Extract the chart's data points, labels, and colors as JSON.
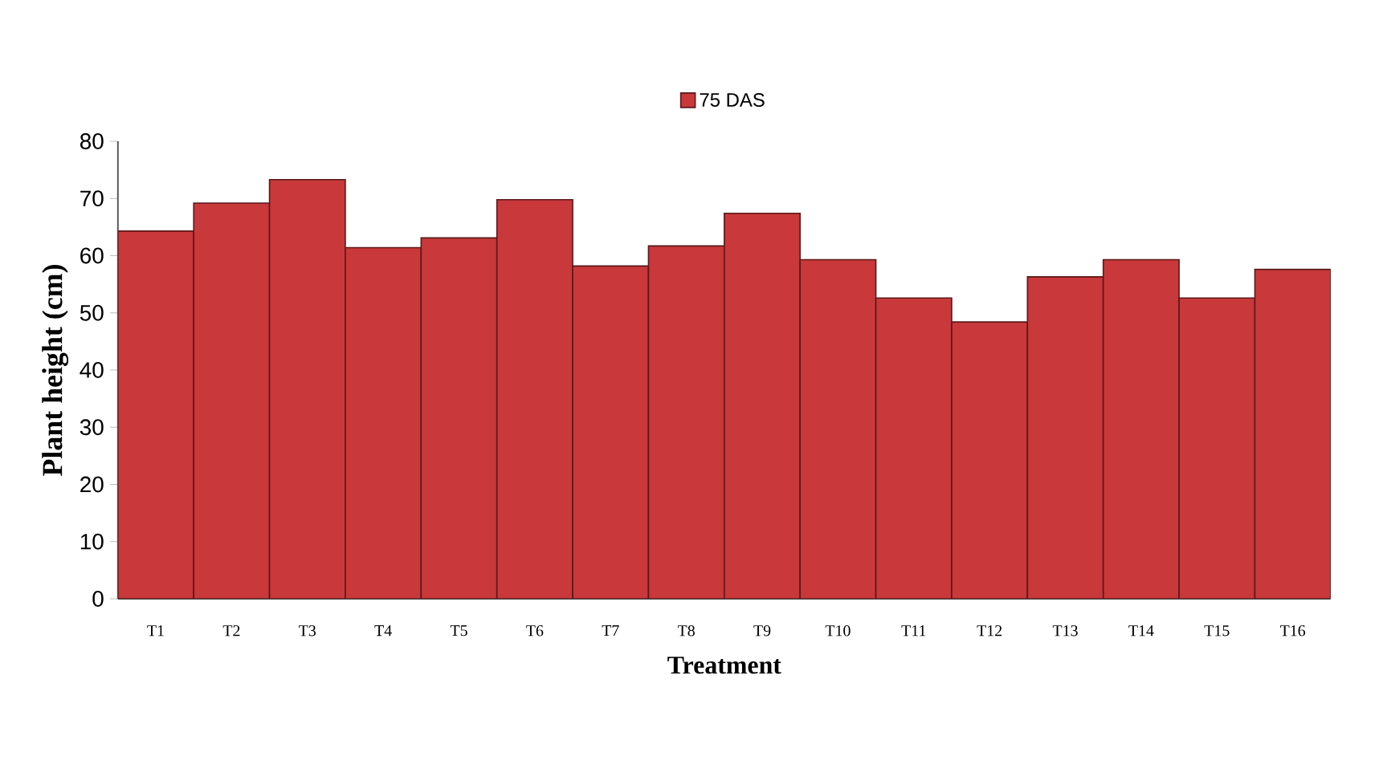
{
  "chart_data": {
    "type": "bar",
    "xlabel": "Treatment",
    "ylabel": "Plant height (cm)",
    "categories": [
      "T1",
      "T2",
      "T3",
      "T4",
      "T5",
      "T6",
      "T7",
      "T8",
      "T9",
      "T10",
      "T11",
      "T12",
      "T13",
      "T14",
      "T15",
      "T16"
    ],
    "series": [
      {
        "name": "75 DAS",
        "color": "#c9383a",
        "values": [
          64.3,
          69.2,
          73.3,
          61.4,
          63.1,
          69.8,
          58.2,
          61.7,
          67.4,
          59.3,
          52.6,
          48.4,
          56.3,
          59.3,
          52.6,
          57.6
        ]
      }
    ],
    "ylim": [
      0,
      80
    ],
    "yticks": [
      0,
      10,
      20,
      30,
      40,
      50,
      60,
      70,
      80
    ],
    "grid": false,
    "legend": "top"
  }
}
